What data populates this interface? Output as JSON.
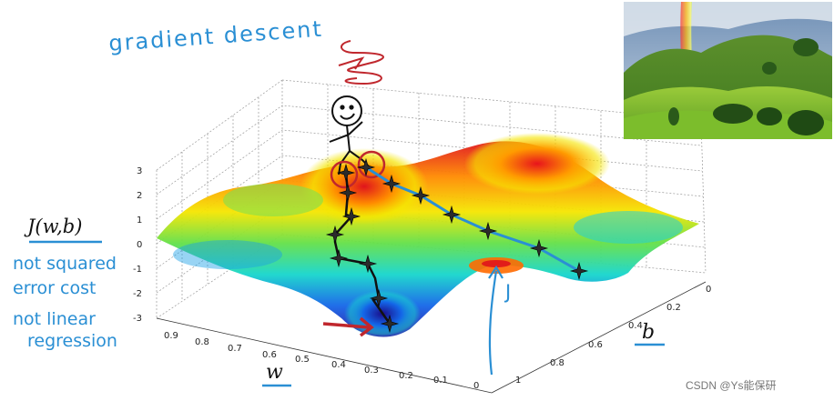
{
  "title": "gradient descent",
  "ylabel": "J(w,b)",
  "notes": [
    "not squared",
    "error cost",
    "not linear",
    "regression"
  ],
  "j_note": "J",
  "xlabel": "w",
  "blabel": "b",
  "z_ticks": [
    "3",
    "2",
    "1",
    "0",
    "-1",
    "-2",
    "-3"
  ],
  "w_ticks": [
    "0.9",
    "0.8",
    "0.7",
    "0.6",
    "0.5",
    "0.4",
    "0.3",
    "0.2",
    "0.1",
    "0"
  ],
  "b_ticks": [
    "0",
    "0.2",
    "0.4",
    "0.6",
    "0.8",
    "1"
  ],
  "watermark": "CSDN @Ys能保研",
  "colors": {
    "annotation": "#2a8fd4",
    "path": "#111111",
    "red_arrow": "#c0272d",
    "descent_line": "#2a8fd4"
  }
}
